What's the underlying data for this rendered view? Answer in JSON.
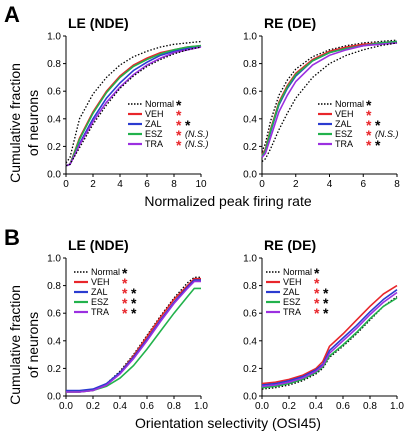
{
  "panels": [
    {
      "letter": "A",
      "ylabel_line1": "Cumulative fraction",
      "ylabel_line2": "of neurons",
      "xlabel": "Normalized peak firing rate"
    },
    {
      "letter": "B",
      "ylabel_line1": "Cumulative fraction",
      "ylabel_line2": "of neurons",
      "xlabel": "Orientation selectivity (OSI45)"
    }
  ],
  "colors": {
    "Normal": "#000000",
    "VEH": "#e8262b",
    "ZAL": "#2b3bd0",
    "ESZ": "#22b24c",
    "TRA": "#9b30e0",
    "red_star": "#e8262b",
    "black_star": "#000000"
  },
  "chart_data": [
    {
      "type": "line",
      "id": "A-LE",
      "title": "LE (NDE)",
      "xlim": [
        0,
        10
      ],
      "ylim": [
        0,
        1.0
      ],
      "xticks": [
        "0",
        "2",
        "4",
        "6",
        "8",
        "10"
      ],
      "yticks": [
        "0.0",
        "0.2",
        "0.4",
        "0.6",
        "0.8",
        "1.0"
      ],
      "legend": [
        {
          "name": "Normal",
          "star1": "*",
          "star1_color": "black",
          "star2": ""
        },
        {
          "name": "VEH",
          "star1": "*",
          "star1_color": "red",
          "star2": ""
        },
        {
          "name": "ZAL",
          "star1": "*",
          "star1_color": "red",
          "star2": "*"
        },
        {
          "name": "ESZ",
          "star1": "*",
          "star1_color": "red",
          "star2": "(N.S.)"
        },
        {
          "name": "TRA",
          "star1": "*",
          "star1_color": "red",
          "star2": "(N.S.)"
        }
      ],
      "series": [
        {
          "name": "Normal",
          "style": "dotted",
          "x": [
            0,
            0.3,
            1,
            2,
            3,
            4,
            5,
            6,
            7,
            8,
            9,
            10
          ],
          "y": [
            0.08,
            0.12,
            0.4,
            0.58,
            0.7,
            0.79,
            0.85,
            0.89,
            0.92,
            0.94,
            0.95,
            0.96
          ]
        },
        {
          "name": "VEH",
          "x": [
            0,
            0.3,
            1,
            2,
            3,
            4,
            5,
            6,
            7,
            8,
            9,
            10
          ],
          "y": [
            0.06,
            0.07,
            0.26,
            0.45,
            0.6,
            0.71,
            0.79,
            0.84,
            0.88,
            0.9,
            0.92,
            0.93
          ]
        },
        {
          "name": "ZAL",
          "x": [
            0,
            0.3,
            1,
            2,
            3,
            4,
            5,
            6,
            7,
            8,
            9,
            10
          ],
          "y": [
            0.06,
            0.07,
            0.22,
            0.4,
            0.55,
            0.66,
            0.75,
            0.81,
            0.86,
            0.89,
            0.91,
            0.93
          ]
        },
        {
          "name": "ESZ",
          "x": [
            0,
            0.3,
            1,
            2,
            3,
            4,
            5,
            6,
            7,
            8,
            9,
            10
          ],
          "y": [
            0.06,
            0.07,
            0.25,
            0.44,
            0.59,
            0.7,
            0.78,
            0.83,
            0.87,
            0.9,
            0.92,
            0.93
          ]
        },
        {
          "name": "TRA",
          "x": [
            0,
            0.3,
            1,
            2,
            3,
            4,
            5,
            6,
            7,
            8,
            9,
            10
          ],
          "y": [
            0.06,
            0.07,
            0.21,
            0.38,
            0.52,
            0.63,
            0.72,
            0.79,
            0.84,
            0.88,
            0.9,
            0.92
          ]
        },
        {
          "name": "Normal",
          "style": "dotted",
          "x": [
            0,
            0.3,
            1,
            2,
            3,
            4,
            5,
            6,
            7,
            8,
            9,
            10
          ],
          "y": [
            0.06,
            0.07,
            0.19,
            0.36,
            0.5,
            0.62,
            0.71,
            0.78,
            0.83,
            0.87,
            0.9,
            0.92
          ]
        }
      ]
    },
    {
      "type": "line",
      "id": "A-RE",
      "title": "RE (DE)",
      "xlim": [
        0,
        8
      ],
      "ylim": [
        0,
        1.0
      ],
      "xticks": [
        "0",
        "2",
        "4",
        "6",
        "8"
      ],
      "yticks": [
        "0.0",
        "0.2",
        "0.4",
        "0.6",
        "0.8",
        "1.0"
      ],
      "legend": [
        {
          "name": "Normal",
          "star1": "*",
          "star1_color": "black",
          "star2": ""
        },
        {
          "name": "VEH",
          "star1": "*",
          "star1_color": "red",
          "star2": ""
        },
        {
          "name": "ZAL",
          "star1": "*",
          "star1_color": "red",
          "star2": "*"
        },
        {
          "name": "ESZ",
          "star1": "*",
          "star1_color": "red",
          "star2": "(N.S.)"
        },
        {
          "name": "TRA",
          "star1": "*",
          "star1_color": "red",
          "star2": "*"
        }
      ],
      "series": [
        {
          "name": "Normal",
          "style": "dotted",
          "x": [
            0,
            0.2,
            0.5,
            1,
            1.5,
            2,
            3,
            4,
            5,
            6,
            7,
            8
          ],
          "y": [
            0.16,
            0.22,
            0.38,
            0.57,
            0.68,
            0.76,
            0.85,
            0.9,
            0.93,
            0.95,
            0.96,
            0.97
          ]
        },
        {
          "name": "VEH",
          "x": [
            0,
            0.2,
            0.5,
            1,
            1.5,
            2,
            3,
            4,
            5,
            6,
            7,
            8
          ],
          "y": [
            0.14,
            0.18,
            0.32,
            0.52,
            0.64,
            0.73,
            0.83,
            0.89,
            0.92,
            0.94,
            0.95,
            0.96
          ]
        },
        {
          "name": "ZAL",
          "x": [
            0,
            0.2,
            0.5,
            1,
            1.5,
            2,
            3,
            4,
            5,
            6,
            7,
            8
          ],
          "y": [
            0.13,
            0.17,
            0.3,
            0.5,
            0.62,
            0.71,
            0.82,
            0.88,
            0.91,
            0.93,
            0.95,
            0.96
          ]
        },
        {
          "name": "ESZ",
          "x": [
            0,
            0.2,
            0.5,
            1,
            1.5,
            2,
            3,
            4,
            5,
            6,
            7,
            8
          ],
          "y": [
            0.13,
            0.17,
            0.31,
            0.51,
            0.63,
            0.72,
            0.82,
            0.88,
            0.91,
            0.93,
            0.95,
            0.96
          ]
        },
        {
          "name": "TRA",
          "x": [
            0,
            0.2,
            0.5,
            1,
            1.5,
            2,
            3,
            4,
            5,
            6,
            7,
            8
          ],
          "y": [
            0.12,
            0.15,
            0.26,
            0.45,
            0.57,
            0.67,
            0.79,
            0.86,
            0.9,
            0.93,
            0.94,
            0.95
          ]
        },
        {
          "name": "Normal",
          "style": "dotted",
          "x": [
            0,
            0.2,
            0.5,
            1,
            1.5,
            2,
            3,
            4,
            5,
            6,
            7,
            8
          ],
          "y": [
            0.09,
            0.11,
            0.18,
            0.32,
            0.44,
            0.55,
            0.7,
            0.8,
            0.86,
            0.9,
            0.93,
            0.95
          ]
        }
      ]
    },
    {
      "type": "line",
      "id": "B-LE",
      "title": "LE (NDE)",
      "xlim": [
        0,
        1.0
      ],
      "ylim": [
        0,
        1.0
      ],
      "xticks": [
        "0.0",
        "0.2",
        "0.4",
        "0.6",
        "0.8",
        "1.0"
      ],
      "yticks": [
        "0.0",
        "0.2",
        "0.4",
        "0.6",
        "0.8",
        "1.0"
      ],
      "legend": [
        {
          "name": "Normal",
          "star1": "*",
          "star1_color": "black",
          "star2": ""
        },
        {
          "name": "VEH",
          "star1": "*",
          "star1_color": "red",
          "star2": ""
        },
        {
          "name": "ZAL",
          "star1": "*",
          "star1_color": "red",
          "star2": "*"
        },
        {
          "name": "ESZ",
          "star1": "*",
          "star1_color": "red",
          "star2": "*"
        },
        {
          "name": "TRA",
          "star1": "*",
          "star1_color": "red",
          "star2": "*"
        }
      ],
      "series": [
        {
          "name": "Normal",
          "style": "dotted",
          "x": [
            0,
            0.1,
            0.2,
            0.3,
            0.4,
            0.5,
            0.6,
            0.7,
            0.8,
            0.9,
            0.95,
            1.0
          ],
          "y": [
            0.03,
            0.03,
            0.04,
            0.09,
            0.18,
            0.3,
            0.44,
            0.58,
            0.71,
            0.82,
            0.86,
            0.86
          ]
        },
        {
          "name": "VEH",
          "x": [
            0,
            0.1,
            0.2,
            0.3,
            0.4,
            0.5,
            0.6,
            0.7,
            0.8,
            0.9,
            0.95,
            1.0
          ],
          "y": [
            0.03,
            0.03,
            0.04,
            0.08,
            0.17,
            0.29,
            0.43,
            0.57,
            0.7,
            0.8,
            0.85,
            0.85
          ]
        },
        {
          "name": "ZAL",
          "x": [
            0,
            0.1,
            0.2,
            0.3,
            0.4,
            0.5,
            0.6,
            0.7,
            0.8,
            0.9,
            0.95,
            1.0
          ],
          "y": [
            0.04,
            0.04,
            0.05,
            0.09,
            0.17,
            0.28,
            0.41,
            0.55,
            0.68,
            0.79,
            0.84,
            0.84
          ]
        },
        {
          "name": "ESZ",
          "x": [
            0,
            0.1,
            0.2,
            0.3,
            0.4,
            0.5,
            0.6,
            0.7,
            0.8,
            0.9,
            0.95,
            1.0
          ],
          "y": [
            0.03,
            0.03,
            0.04,
            0.07,
            0.13,
            0.22,
            0.34,
            0.47,
            0.6,
            0.72,
            0.78,
            0.78
          ]
        },
        {
          "name": "TRA",
          "x": [
            0,
            0.1,
            0.2,
            0.3,
            0.4,
            0.5,
            0.6,
            0.7,
            0.8,
            0.9,
            0.95,
            1.0
          ],
          "y": [
            0.03,
            0.03,
            0.04,
            0.08,
            0.16,
            0.27,
            0.4,
            0.54,
            0.67,
            0.78,
            0.83,
            0.83
          ]
        }
      ]
    },
    {
      "type": "line",
      "id": "B-RE",
      "title": "RE (DE)",
      "xlim": [
        0,
        1.0
      ],
      "ylim": [
        0,
        1.0
      ],
      "xticks": [
        "0.0",
        "0.2",
        "0.4",
        "0.6",
        "0.8",
        "1.0"
      ],
      "yticks": [
        "0.0",
        "0.2",
        "0.4",
        "0.6",
        "0.8",
        "1.0"
      ],
      "legend": [
        {
          "name": "Normal",
          "star1": "*",
          "star1_color": "black",
          "star2": ""
        },
        {
          "name": "VEH",
          "star1": "*",
          "star1_color": "red",
          "star2": ""
        },
        {
          "name": "ZAL",
          "star1": "*",
          "star1_color": "red",
          "star2": "*"
        },
        {
          "name": "ESZ",
          "star1": "*",
          "star1_color": "red",
          "star2": "*"
        },
        {
          "name": "TRA",
          "star1": "*",
          "star1_color": "red",
          "star2": "*"
        }
      ],
      "series": [
        {
          "name": "Normal",
          "style": "dotted",
          "x": [
            0,
            0.1,
            0.2,
            0.3,
            0.4,
            0.45,
            0.5,
            0.6,
            0.7,
            0.8,
            0.9,
            1.0
          ],
          "y": [
            0.05,
            0.06,
            0.08,
            0.11,
            0.16,
            0.2,
            0.28,
            0.36,
            0.45,
            0.55,
            0.65,
            0.72
          ]
        },
        {
          "name": "VEH",
          "x": [
            0,
            0.1,
            0.2,
            0.3,
            0.4,
            0.45,
            0.5,
            0.6,
            0.7,
            0.8,
            0.9,
            1.0
          ],
          "y": [
            0.09,
            0.1,
            0.12,
            0.15,
            0.2,
            0.25,
            0.36,
            0.45,
            0.55,
            0.65,
            0.74,
            0.8
          ]
        },
        {
          "name": "ZAL",
          "x": [
            0,
            0.1,
            0.2,
            0.3,
            0.4,
            0.45,
            0.5,
            0.6,
            0.7,
            0.8,
            0.9,
            1.0
          ],
          "y": [
            0.08,
            0.09,
            0.11,
            0.14,
            0.19,
            0.23,
            0.33,
            0.42,
            0.51,
            0.61,
            0.7,
            0.77
          ]
        },
        {
          "name": "ESZ",
          "x": [
            0,
            0.1,
            0.2,
            0.3,
            0.4,
            0.45,
            0.5,
            0.6,
            0.7,
            0.8,
            0.9,
            1.0
          ],
          "y": [
            0.06,
            0.07,
            0.09,
            0.12,
            0.17,
            0.21,
            0.29,
            0.37,
            0.46,
            0.56,
            0.65,
            0.71
          ]
        },
        {
          "name": "TRA",
          "x": [
            0,
            0.1,
            0.2,
            0.3,
            0.4,
            0.45,
            0.5,
            0.6,
            0.7,
            0.8,
            0.9,
            1.0
          ],
          "y": [
            0.07,
            0.08,
            0.1,
            0.13,
            0.18,
            0.22,
            0.31,
            0.4,
            0.49,
            0.59,
            0.68,
            0.75
          ]
        }
      ]
    }
  ]
}
